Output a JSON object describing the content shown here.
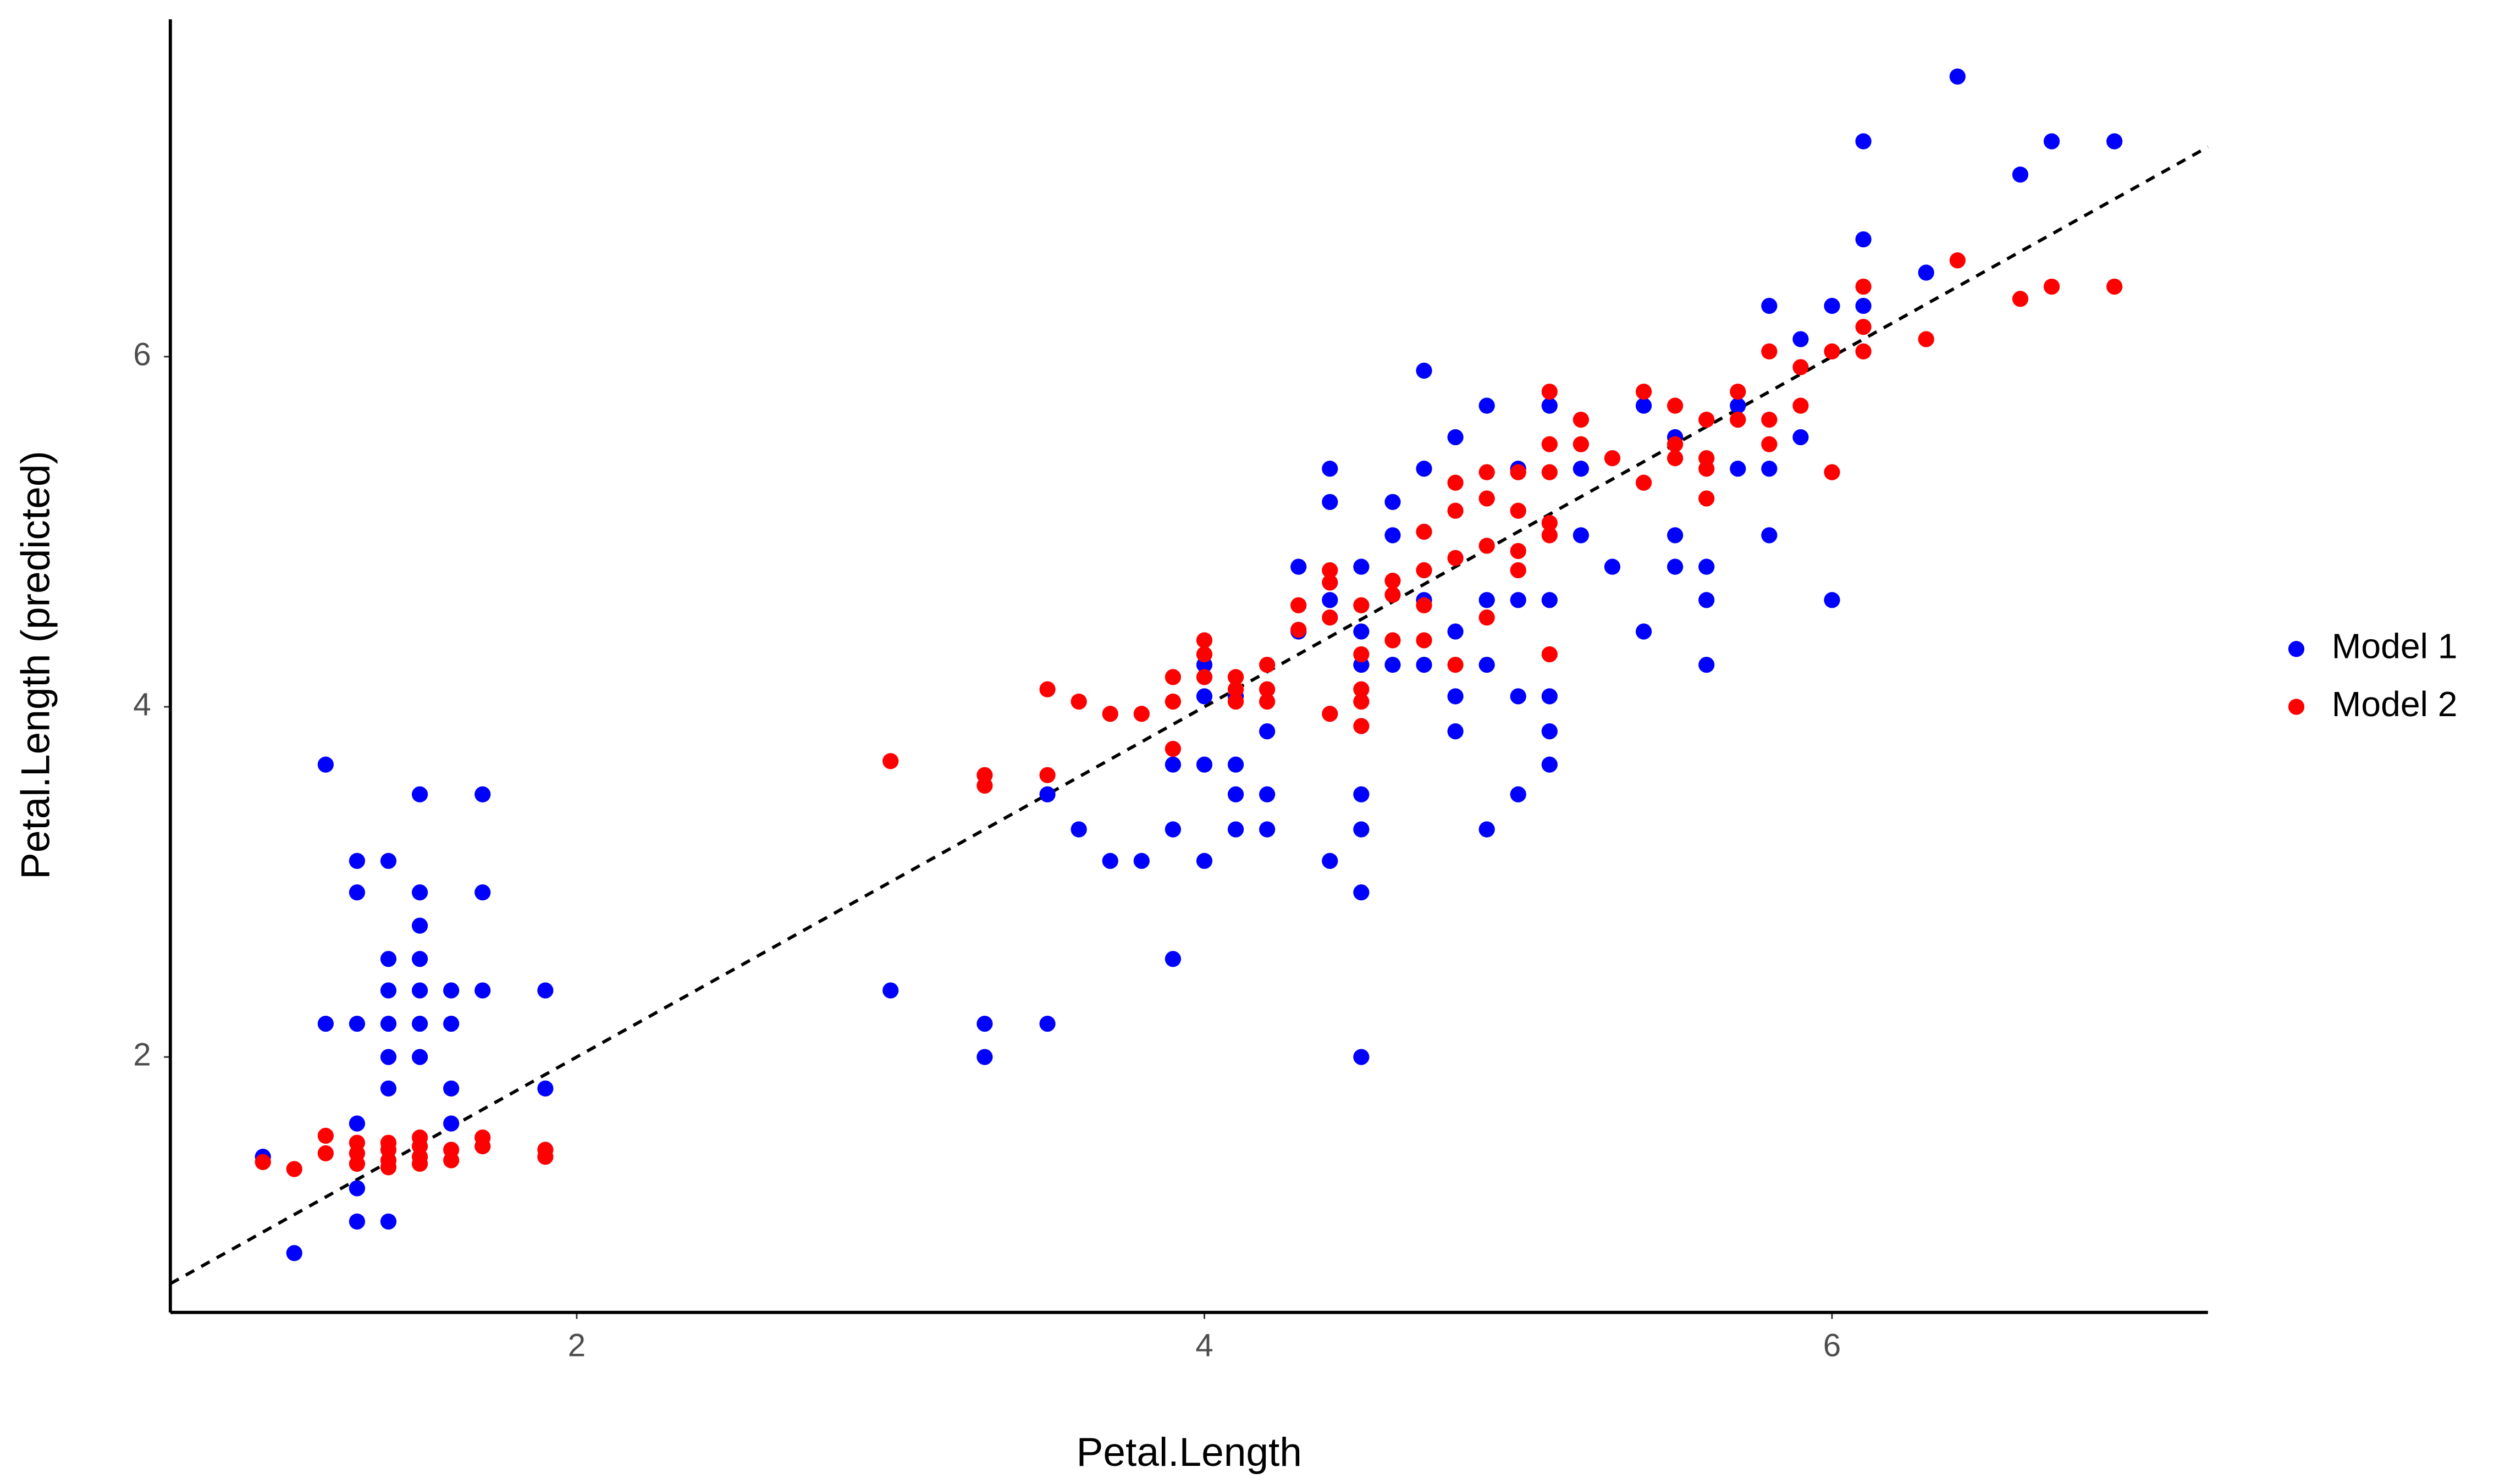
{
  "chart_data": {
    "type": "scatter",
    "x_label": "Petal.Length",
    "y_label": "Petal.Length (predicted)",
    "xlim": [
      0.705,
      7.198
    ],
    "ylim": [
      0.541,
      7.927
    ],
    "xticks": [
      2,
      4,
      6
    ],
    "yticks": [
      2,
      4,
      6
    ],
    "grid": false,
    "identity_line": true,
    "legend_position": "right",
    "series": [
      {
        "name": "Model 1",
        "color": "#0000ff",
        "x": [
          1.0,
          1.1,
          1.2,
          1.2,
          1.3,
          1.3,
          1.3,
          1.3,
          1.3,
          1.3,
          1.4,
          1.4,
          1.4,
          1.4,
          1.4,
          1.4,
          1.4,
          1.5,
          1.5,
          1.5,
          1.5,
          1.5,
          1.5,
          1.5,
          1.6,
          1.6,
          1.6,
          1.6,
          1.7,
          1.7,
          1.7,
          1.9,
          1.9,
          3.0,
          3.3,
          3.3,
          3.5,
          3.5,
          3.6,
          3.7,
          3.8,
          3.9,
          3.9,
          3.9,
          4.0,
          4.0,
          4.0,
          4.0,
          4.1,
          4.1,
          4.1,
          4.1,
          4.2,
          4.2,
          4.2,
          4.3,
          4.3,
          4.4,
          4.4,
          4.4,
          4.4,
          4.5,
          4.5,
          4.5,
          4.5,
          4.5,
          4.5,
          4.5,
          4.6,
          4.6,
          4.6,
          4.7,
          4.7,
          4.7,
          4.7,
          4.8,
          4.8,
          4.8,
          4.8,
          4.9,
          4.9,
          4.9,
          4.9,
          5.0,
          5.0,
          5.0,
          5.0,
          5.1,
          5.1,
          5.1,
          5.1,
          5.1,
          5.2,
          5.2,
          5.3,
          5.4,
          5.4,
          5.5,
          5.5,
          5.5,
          5.6,
          5.6,
          5.6,
          5.7,
          5.7,
          5.8,
          5.8,
          5.8,
          5.9,
          5.9,
          6.0,
          6.0,
          6.1,
          6.1,
          6.1,
          6.3,
          6.4,
          6.6,
          6.7,
          6.9
        ],
        "values": [
          1.43,
          0.88,
          3.67,
          2.19,
          3.12,
          2.94,
          2.19,
          1.62,
          1.25,
          1.06,
          3.12,
          2.56,
          2.38,
          2.19,
          2.0,
          1.82,
          1.06,
          3.5,
          2.94,
          2.75,
          2.56,
          2.38,
          2.19,
          2.0,
          2.38,
          2.19,
          1.82,
          1.62,
          3.5,
          2.94,
          2.38,
          2.38,
          1.82,
          2.38,
          2.19,
          2.0,
          3.5,
          2.19,
          3.3,
          3.12,
          3.12,
          2.56,
          3.3,
          3.67,
          3.12,
          3.67,
          4.06,
          4.24,
          3.67,
          3.5,
          3.3,
          4.06,
          3.5,
          3.3,
          3.86,
          4.8,
          4.43,
          5.36,
          5.17,
          4.61,
          3.12,
          4.8,
          4.43,
          4.24,
          3.5,
          3.3,
          2.94,
          2.0,
          5.17,
          4.98,
          4.24,
          5.92,
          5.36,
          4.61,
          4.24,
          5.54,
          4.43,
          4.06,
          3.86,
          5.72,
          4.61,
          4.24,
          3.3,
          5.36,
          4.61,
          4.06,
          3.5,
          5.72,
          4.61,
          4.06,
          3.86,
          3.67,
          5.36,
          4.98,
          4.8,
          5.72,
          4.43,
          5.54,
          4.98,
          4.8,
          4.8,
          4.61,
          4.24,
          5.72,
          5.36,
          6.29,
          5.36,
          4.98,
          6.1,
          5.54,
          6.29,
          4.61,
          7.23,
          6.67,
          6.29,
          6.48,
          7.6,
          7.04,
          7.23,
          7.23
        ]
      },
      {
        "name": "Model 2",
        "color": "#ff0000",
        "x": [
          1.0,
          1.1,
          1.2,
          1.2,
          1.3,
          1.3,
          1.3,
          1.4,
          1.4,
          1.4,
          1.4,
          1.5,
          1.5,
          1.5,
          1.5,
          1.6,
          1.6,
          1.7,
          1.7,
          1.9,
          1.9,
          3.0,
          3.3,
          3.3,
          3.5,
          3.5,
          3.6,
          3.7,
          3.8,
          3.9,
          3.9,
          3.9,
          4.0,
          4.0,
          4.0,
          4.1,
          4.1,
          4.1,
          4.2,
          4.2,
          4.2,
          4.3,
          4.3,
          4.4,
          4.4,
          4.4,
          4.4,
          4.5,
          4.5,
          4.5,
          4.5,
          4.5,
          4.6,
          4.6,
          4.6,
          4.7,
          4.7,
          4.7,
          4.7,
          4.8,
          4.8,
          4.8,
          4.8,
          4.9,
          4.9,
          4.9,
          4.9,
          5.0,
          5.0,
          5.0,
          5.0,
          5.1,
          5.1,
          5.1,
          5.1,
          5.1,
          5.1,
          5.2,
          5.2,
          5.3,
          5.4,
          5.4,
          5.5,
          5.5,
          5.5,
          5.6,
          5.6,
          5.6,
          5.6,
          5.7,
          5.7,
          5.8,
          5.8,
          5.8,
          5.9,
          5.9,
          6.0,
          6.0,
          6.1,
          6.1,
          6.1,
          6.3,
          6.4,
          6.6,
          6.7,
          6.9
        ],
        "values": [
          1.4,
          1.36,
          1.55,
          1.45,
          1.51,
          1.45,
          1.39,
          1.51,
          1.47,
          1.41,
          1.37,
          1.54,
          1.49,
          1.43,
          1.39,
          1.47,
          1.41,
          1.54,
          1.49,
          1.47,
          1.43,
          3.69,
          3.61,
          3.55,
          3.61,
          4.1,
          4.03,
          3.96,
          3.96,
          3.76,
          4.17,
          4.03,
          4.38,
          4.3,
          4.17,
          4.17,
          4.1,
          4.03,
          4.24,
          4.1,
          4.03,
          4.58,
          4.44,
          4.78,
          4.71,
          4.51,
          3.96,
          4.58,
          4.3,
          4.1,
          4.03,
          3.89,
          4.72,
          4.64,
          4.38,
          4.78,
          4.58,
          4.38,
          5.0,
          5.28,
          5.12,
          4.85,
          4.24,
          5.34,
          5.19,
          4.92,
          4.51,
          5.34,
          5.12,
          4.89,
          4.78,
          5.8,
          5.5,
          5.34,
          5.05,
          4.98,
          4.3,
          5.64,
          5.5,
          5.42,
          5.8,
          5.28,
          5.72,
          5.5,
          5.42,
          5.64,
          5.42,
          5.36,
          5.19,
          5.8,
          5.64,
          6.03,
          5.64,
          5.5,
          5.94,
          5.72,
          6.03,
          5.34,
          6.4,
          6.17,
          6.03,
          6.1,
          6.55,
          6.33,
          6.4,
          6.4
        ]
      }
    ]
  }
}
